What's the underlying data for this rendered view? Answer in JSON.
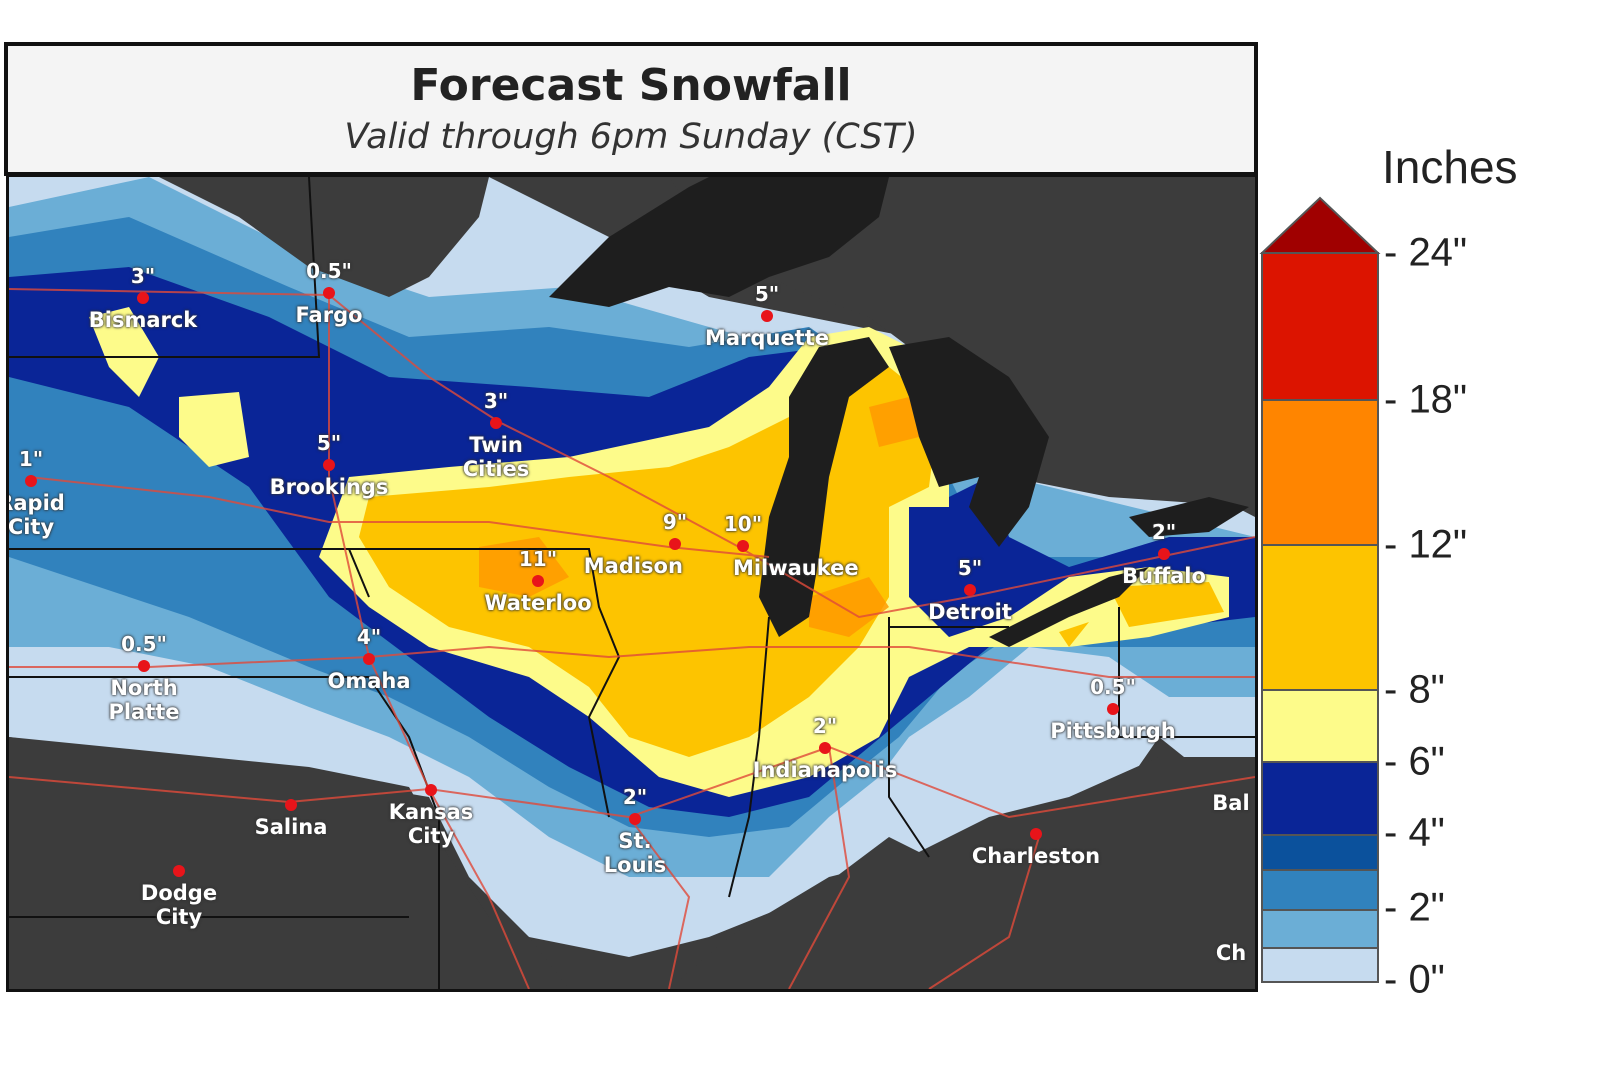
{
  "header": {
    "title": "Forecast Snowfall",
    "subtitle": "Valid through 6pm Sunday (CST)"
  },
  "legend": {
    "title": "Inches",
    "ticks": [
      "24\"",
      "18\"",
      "12\"",
      "8\"",
      "6\"",
      "4\"",
      "2\"",
      "0\""
    ],
    "bins": [
      {
        "range": "0-1",
        "color": "#c6dbef"
      },
      {
        "range": "1-2",
        "color": "#6baed6"
      },
      {
        "range": "2-3",
        "color": "#3182bd"
      },
      {
        "range": "3-4",
        "color": "#0b519c"
      },
      {
        "range": "4-6",
        "color": "#0a2597"
      },
      {
        "range": "6-8",
        "color": "#fdfb8a"
      },
      {
        "range": "8-12",
        "color": "#fdc400"
      },
      {
        "range": "12-18",
        "color": "#ff8500"
      },
      {
        "range": "18-24",
        "color": "#dc1400"
      },
      {
        "range": "24+",
        "color": "#a00000"
      }
    ]
  },
  "cities": [
    {
      "name": "Bismarck",
      "amount": "3\""
    },
    {
      "name": "Fargo",
      "amount": "0.5\""
    },
    {
      "name": "Twin Cities",
      "amount": "3\""
    },
    {
      "name": "Brookings",
      "amount": "5\""
    },
    {
      "name": "Rapid City",
      "amount": "1\""
    },
    {
      "name": "Madison",
      "amount": "9\""
    },
    {
      "name": "Milwaukee",
      "amount": "10\""
    },
    {
      "name": "Waterloo",
      "amount": "11\""
    },
    {
      "name": "Marquette",
      "amount": "5\""
    },
    {
      "name": "Detroit",
      "amount": "5\""
    },
    {
      "name": "Buffalo",
      "amount": "2\""
    },
    {
      "name": "Omaha",
      "amount": "4\""
    },
    {
      "name": "North Platte",
      "amount": "0.5\""
    },
    {
      "name": "Pittsburgh",
      "amount": "0.5\""
    },
    {
      "name": "Indianapolis",
      "amount": "2\""
    },
    {
      "name": "St. Louis",
      "amount": "2\""
    },
    {
      "name": "Kansas City",
      "amount": ""
    },
    {
      "name": "Salina",
      "amount": ""
    },
    {
      "name": "Dodge City",
      "amount": ""
    },
    {
      "name": "Charleston",
      "amount": ""
    },
    {
      "name": "Bal",
      "amount": ""
    },
    {
      "name": "Ch",
      "amount": ""
    }
  ]
}
